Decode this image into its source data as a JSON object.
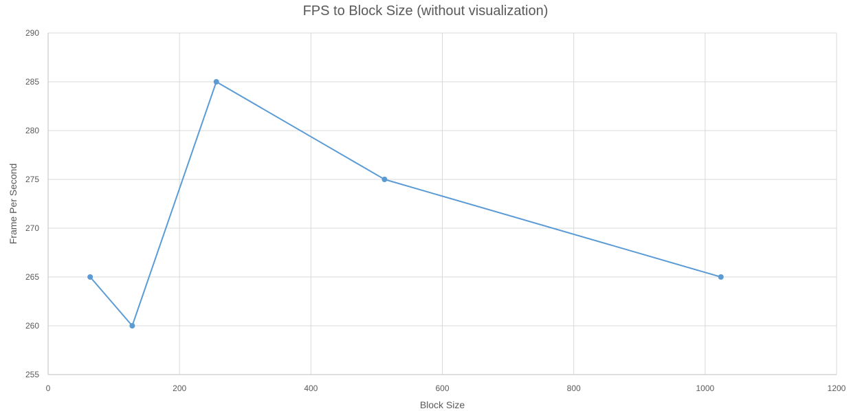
{
  "chart_data": {
    "type": "line",
    "title": "FPS to Block Size (without visualization)",
    "xlabel": "Block Size",
    "ylabel": "Frame Per Second",
    "xlim": [
      0,
      1200
    ],
    "ylim": [
      255,
      290
    ],
    "xticks": [
      0,
      200,
      400,
      600,
      800,
      1000,
      1200
    ],
    "yticks": [
      255,
      260,
      265,
      270,
      275,
      280,
      285,
      290
    ],
    "grid": true,
    "legend": "none",
    "series": [
      {
        "color": "#5b9bd5",
        "x": [
          64,
          128,
          256,
          512,
          1024
        ],
        "y": [
          265,
          260,
          285,
          275,
          265
        ]
      }
    ]
  }
}
